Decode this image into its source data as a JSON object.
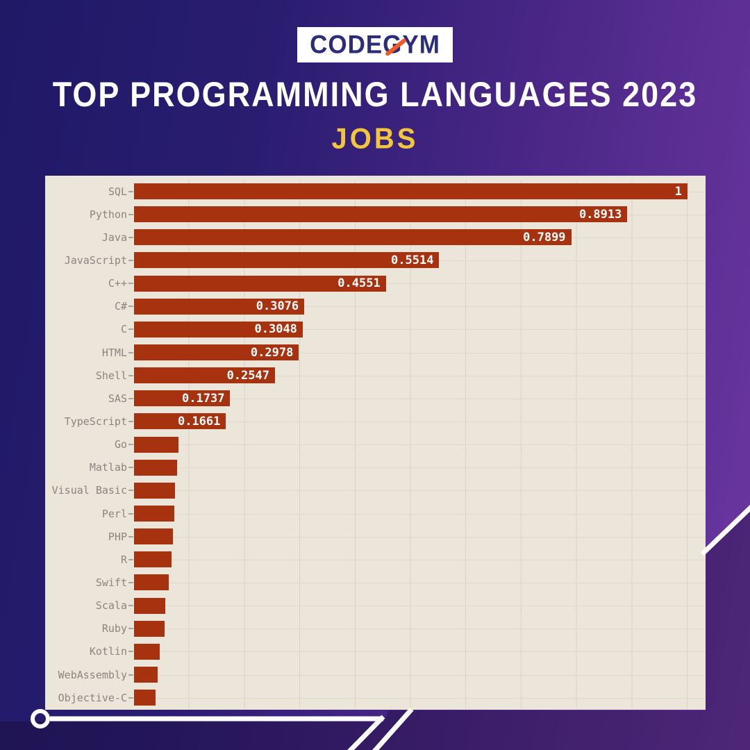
{
  "logo": {
    "text": "CODEGYM",
    "slash_color": "#f05a24",
    "text_color": "#2b2d7a"
  },
  "header": {
    "title": "TOP PROGRAMMING LANGUAGES 2023",
    "subtitle": "JOBS",
    "title_color": "#ffffff",
    "subtitle_color": "#f2c53d"
  },
  "chart_data": {
    "type": "bar",
    "orientation": "horizontal",
    "title": "TOP PROGRAMMING LANGUAGES 2023",
    "subtitle": "JOBS",
    "xlim": [
      0,
      1.0
    ],
    "grid": true,
    "gridline_interval": 0.1,
    "categories": [
      "SQL",
      "Python",
      "Java",
      "JavaScript",
      "C++",
      "C#",
      "C",
      "HTML",
      "Shell",
      "SAS",
      "TypeScript",
      "Go",
      "Matlab",
      "Visual Basic",
      "Perl",
      "PHP",
      "R",
      "Swift",
      "Scala",
      "Ruby",
      "Kotlin",
      "WebAssembly",
      "Objective-C"
    ],
    "values": [
      1,
      0.8913,
      0.7899,
      0.5514,
      0.4551,
      0.3076,
      0.3048,
      0.2978,
      0.2547,
      0.1737,
      0.1661,
      0.08,
      0.078,
      0.074,
      0.073,
      0.07,
      0.068,
      0.063,
      0.057,
      0.055,
      0.047,
      0.043,
      0.039
    ],
    "value_labels": [
      "1",
      "0.8913",
      "0.7899",
      "0.5514",
      "0.4551",
      "0.3076",
      "0.3048",
      "0.2978",
      "0.2547",
      "0.1737",
      "0.1661",
      null,
      null,
      null,
      null,
      null,
      null,
      null,
      null,
      null,
      null,
      null,
      null
    ],
    "bar_color": "#a63210",
    "panel_background": "#ebe5da",
    "category_label_color": "#8b8580",
    "value_label_color": "#ffffff",
    "gridline_color": "#d8d2c8"
  },
  "background": {
    "gradient_from": "#1f1966",
    "gradient_to": "#6c37a1",
    "fold_overlay": "rgba(24,8,44,0.35)",
    "decor_line_color": "#ffffff"
  }
}
